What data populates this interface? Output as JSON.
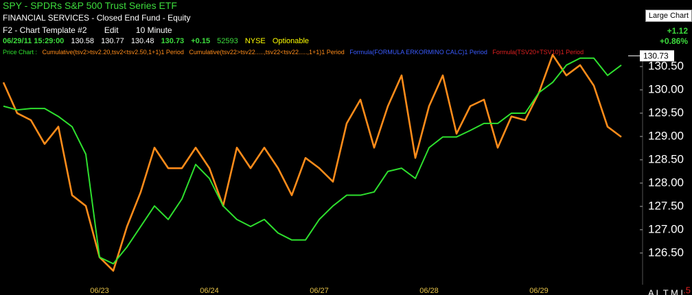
{
  "header": {
    "title": "SPY - SPDRs S&P 500 Trust Series ETF",
    "subtitle": "FINANCIAL SERVICES - Closed End Fund - Equity",
    "toolbar": [
      "F2 - Chart Template #2",
      "Edit",
      "10 Minute"
    ],
    "quote": [
      "06/29/11 15:29:00",
      "130.58",
      "130.77",
      "130.48",
      "130.73",
      "+0.15",
      "52593",
      "NYSE",
      "Optionable"
    ],
    "large_chart": "Large Chart",
    "change": "+1.12",
    "change_pct": "+0.86%",
    "legend": [
      "Price Chart :",
      "Cumulative(tsv2>tsv2.20,tsv2<tsv2.50,1+1)1 Period",
      "Cumulative(tsv22>tsv22.....,tsv22<tsv22.....,1+1)1 Period",
      "Formula(FORMULA ERKORMINO CALC)1 Period",
      "Formula(TSV20+TSV10)1 Period"
    ],
    "footer": "A L T M L",
    "corner": ".5"
  },
  "chart_data": {
    "type": "line",
    "categories": [
      null,
      null,
      null,
      null,
      null,
      null,
      null,
      "06/23",
      null,
      null,
      null,
      null,
      null,
      null,
      null,
      "06/24",
      null,
      null,
      null,
      null,
      null,
      null,
      null,
      "06/27",
      null,
      null,
      null,
      null,
      null,
      null,
      null,
      "06/28",
      null,
      null,
      null,
      null,
      null,
      null,
      null,
      "06/29",
      null,
      null,
      null,
      null,
      null,
      null
    ],
    "series": [
      {
        "name": "Price Chart :",
        "color": "#2ee02e",
        "values": [
          129.65,
          129.57,
          129.6,
          129.6,
          129.43,
          129.21,
          128.62,
          126.41,
          126.27,
          126.63,
          127.07,
          127.51,
          127.22,
          127.66,
          128.4,
          128.1,
          127.51,
          127.22,
          127.07,
          127.22,
          126.93,
          126.78,
          126.78,
          127.22,
          127.51,
          127.74,
          127.74,
          127.81,
          128.25,
          128.32,
          128.1,
          128.76,
          128.99,
          128.99,
          129.13,
          129.28,
          129.28,
          129.5,
          129.5,
          129.94,
          130.16,
          130.53,
          130.68,
          130.68,
          130.31,
          130.53
        ]
      },
      {
        "name": "Cumulative(tsv2>tsv2.20,tsv2<tsv2.50,1+1)1 Period",
        "color": "#ff8c1a",
        "values": [
          130.16,
          129.5,
          129.35,
          128.84,
          129.21,
          127.74,
          127.51,
          126.41,
          126.12,
          127.07,
          127.81,
          128.76,
          128.32,
          128.32,
          128.76,
          128.32,
          127.51,
          128.76,
          128.32,
          128.76,
          128.32,
          127.74,
          128.54,
          128.32,
          128.03,
          129.28,
          129.79,
          128.76,
          129.65,
          130.31,
          128.54,
          129.65,
          130.31,
          129.06,
          129.65,
          129.79,
          128.76,
          129.43,
          129.35,
          129.94,
          130.75,
          130.31,
          130.53,
          130.09,
          129.21,
          128.99
        ]
      }
    ],
    "ylim": [
      125.85,
      130.75
    ],
    "yticks": [
      {
        "value": 126.5,
        "label": "126.50"
      },
      {
        "value": 127,
        "label": "127.00"
      },
      {
        "value": 127.5,
        "label": "127.50"
      },
      {
        "value": 128,
        "label": "128.00"
      },
      {
        "value": 128.5,
        "label": "128.50"
      },
      {
        "value": 129,
        "label": "129.00"
      },
      {
        "value": 129.5,
        "label": "129.50"
      },
      {
        "value": 130,
        "label": "130.00"
      },
      {
        "value": 130.5,
        "label": "130.50"
      }
    ],
    "last_price": {
      "value": 130.73,
      "label": "130.73"
    },
    "grid": false
  }
}
